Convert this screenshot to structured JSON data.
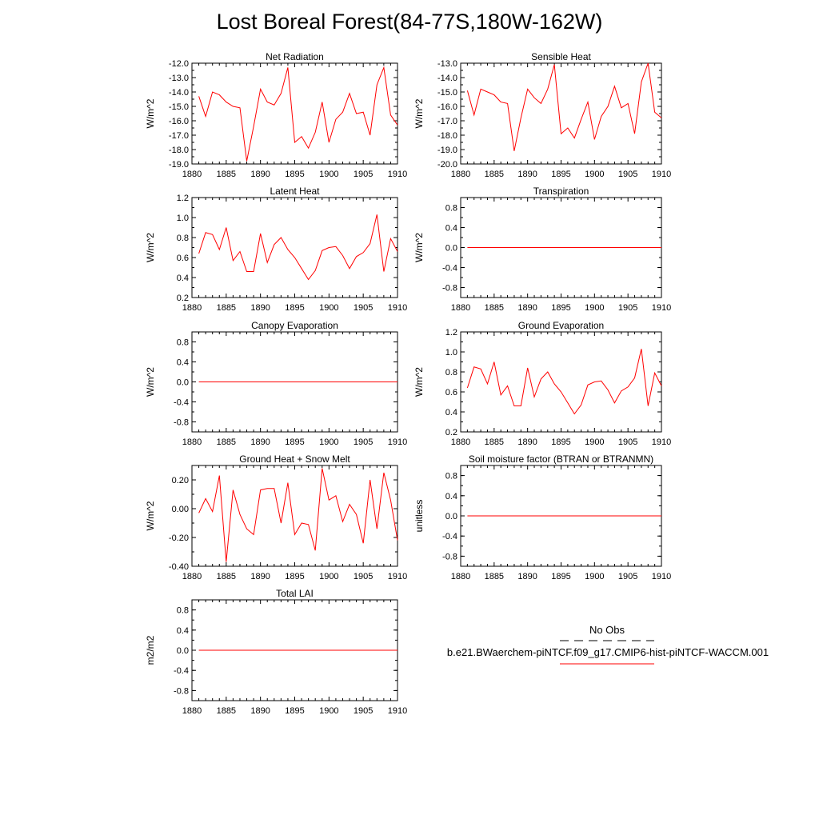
{
  "title": "Lost Boreal Forest(84-77S,180W-162W)",
  "legend": {
    "obs_label": "No Obs",
    "case_label": "b.e21.BWaerchem-piNTCF.f09_g17.CMIP6-hist-piNTCF-WACCM.001",
    "obs_color": "#000000",
    "case_color": "#ff0000"
  },
  "colors": {
    "line": "#ff0000",
    "axis": "#000000"
  },
  "chart_data": [
    {
      "type": "line",
      "title": "Net Radiation",
      "ylabel": "W/m^2",
      "xlim": [
        1880,
        1910
      ],
      "ylim": [
        -19.0,
        -12.0
      ],
      "xticks": [
        1880,
        1885,
        1890,
        1895,
        1900,
        1905,
        1910
      ],
      "yticks": [
        -19.0,
        -18.0,
        -17.0,
        -16.0,
        -15.0,
        -14.0,
        -13.0,
        -12.0
      ],
      "yticklabels": [
        "-19.0",
        "-18.0",
        "-17.0",
        "-16.0",
        "-15.0",
        "-14.0",
        "-13.0",
        "-12.0"
      ],
      "x": [
        1881,
        1882,
        1883,
        1884,
        1885,
        1886,
        1887,
        1888,
        1889,
        1890,
        1891,
        1892,
        1893,
        1894,
        1895,
        1896,
        1897,
        1898,
        1899,
        1900,
        1901,
        1902,
        1903,
        1904,
        1905,
        1906,
        1907,
        1908,
        1909,
        1910
      ],
      "values": [
        -14.3,
        -15.7,
        -14.0,
        -14.2,
        -14.7,
        -15.0,
        -15.1,
        -18.8,
        -16.4,
        -13.8,
        -14.7,
        -14.9,
        -14.1,
        -12.3,
        -17.5,
        -17.1,
        -17.9,
        -16.8,
        -14.7,
        -17.5,
        -15.9,
        -15.4,
        -14.1,
        -15.5,
        -15.4,
        -17.0,
        -13.5,
        -12.3,
        -15.6,
        -16.3
      ]
    },
    {
      "type": "line",
      "title": "Sensible Heat",
      "ylabel": "W/m^2",
      "xlim": [
        1880,
        1910
      ],
      "ylim": [
        -20.0,
        -13.0
      ],
      "xticks": [
        1880,
        1885,
        1890,
        1895,
        1900,
        1905,
        1910
      ],
      "yticks": [
        -20.0,
        -19.0,
        -18.0,
        -17.0,
        -16.0,
        -15.0,
        -14.0,
        -13.0
      ],
      "yticklabels": [
        "-20.0",
        "-19.0",
        "-18.0",
        "-17.0",
        "-16.0",
        "-15.0",
        "-14.0",
        "-13.0"
      ],
      "x": [
        1881,
        1882,
        1883,
        1884,
        1885,
        1886,
        1887,
        1888,
        1889,
        1890,
        1891,
        1892,
        1893,
        1894,
        1895,
        1896,
        1897,
        1898,
        1899,
        1900,
        1901,
        1902,
        1903,
        1904,
        1905,
        1906,
        1907,
        1908,
        1909,
        1910
      ],
      "values": [
        -14.9,
        -16.6,
        -14.8,
        -15.0,
        -15.2,
        -15.7,
        -15.8,
        -19.1,
        -16.8,
        -14.8,
        -15.4,
        -15.8,
        -14.8,
        -13.1,
        -17.9,
        -17.5,
        -18.2,
        -16.9,
        -15.7,
        -18.3,
        -16.7,
        -16.0,
        -14.6,
        -16.1,
        -15.8,
        -17.9,
        -14.3,
        -13.0,
        -16.4,
        -16.8
      ]
    },
    {
      "type": "line",
      "title": "Latent Heat",
      "ylabel": "W/m^2",
      "xlim": [
        1880,
        1910
      ],
      "ylim": [
        0.2,
        1.2
      ],
      "xticks": [
        1880,
        1885,
        1890,
        1895,
        1900,
        1905,
        1910
      ],
      "yticks": [
        0.2,
        0.4,
        0.6,
        0.8,
        1.0,
        1.2
      ],
      "yticklabels": [
        "0.2",
        "0.4",
        "0.6",
        "0.8",
        "1.0",
        "1.2"
      ],
      "x": [
        1881,
        1882,
        1883,
        1884,
        1885,
        1886,
        1887,
        1888,
        1889,
        1890,
        1891,
        1892,
        1893,
        1894,
        1895,
        1896,
        1897,
        1898,
        1899,
        1900,
        1901,
        1902,
        1903,
        1904,
        1905,
        1906,
        1907,
        1908,
        1909,
        1910
      ],
      "values": [
        0.64,
        0.85,
        0.83,
        0.68,
        0.9,
        0.57,
        0.66,
        0.46,
        0.46,
        0.84,
        0.55,
        0.73,
        0.8,
        0.68,
        0.6,
        0.49,
        0.38,
        0.47,
        0.67,
        0.7,
        0.71,
        0.62,
        0.49,
        0.61,
        0.65,
        0.74,
        1.03,
        0.46,
        0.79,
        0.66
      ]
    },
    {
      "type": "line",
      "title": "Transpiration",
      "ylabel": "W/m^2",
      "xlim": [
        1880,
        1910
      ],
      "ylim": [
        -1.0,
        1.0
      ],
      "xticks": [
        1880,
        1885,
        1890,
        1895,
        1900,
        1905,
        1910
      ],
      "yticks": [
        -0.8,
        -0.4,
        0.0,
        0.4,
        0.8
      ],
      "yticklabels": [
        "-0.8",
        "-0.4",
        "0.0",
        "0.4",
        "0.8"
      ],
      "x": [
        1881,
        1882,
        1883,
        1884,
        1885,
        1886,
        1887,
        1888,
        1889,
        1890,
        1891,
        1892,
        1893,
        1894,
        1895,
        1896,
        1897,
        1898,
        1899,
        1900,
        1901,
        1902,
        1903,
        1904,
        1905,
        1906,
        1907,
        1908,
        1909,
        1910
      ],
      "values": [
        0,
        0,
        0,
        0,
        0,
        0,
        0,
        0,
        0,
        0,
        0,
        0,
        0,
        0,
        0,
        0,
        0,
        0,
        0,
        0,
        0,
        0,
        0,
        0,
        0,
        0,
        0,
        0,
        0,
        0
      ]
    },
    {
      "type": "line",
      "title": "Canopy Evaporation",
      "ylabel": "W/m^2",
      "xlim": [
        1880,
        1910
      ],
      "ylim": [
        -1.0,
        1.0
      ],
      "xticks": [
        1880,
        1885,
        1890,
        1895,
        1900,
        1905,
        1910
      ],
      "yticks": [
        -0.8,
        -0.4,
        0.0,
        0.4,
        0.8
      ],
      "yticklabels": [
        "-0.8",
        "-0.4",
        "0.0",
        "0.4",
        "0.8"
      ],
      "x": [
        1881,
        1882,
        1883,
        1884,
        1885,
        1886,
        1887,
        1888,
        1889,
        1890,
        1891,
        1892,
        1893,
        1894,
        1895,
        1896,
        1897,
        1898,
        1899,
        1900,
        1901,
        1902,
        1903,
        1904,
        1905,
        1906,
        1907,
        1908,
        1909,
        1910
      ],
      "values": [
        0,
        0,
        0,
        0,
        0,
        0,
        0,
        0,
        0,
        0,
        0,
        0,
        0,
        0,
        0,
        0,
        0,
        0,
        0,
        0,
        0,
        0,
        0,
        0,
        0,
        0,
        0,
        0,
        0,
        0
      ]
    },
    {
      "type": "line",
      "title": "Ground Evaporation",
      "ylabel": "W/m^2",
      "xlim": [
        1880,
        1910
      ],
      "ylim": [
        0.2,
        1.2
      ],
      "xticks": [
        1880,
        1885,
        1890,
        1895,
        1900,
        1905,
        1910
      ],
      "yticks": [
        0.2,
        0.4,
        0.6,
        0.8,
        1.0,
        1.2
      ],
      "yticklabels": [
        "0.2",
        "0.4",
        "0.6",
        "0.8",
        "1.0",
        "1.2"
      ],
      "x": [
        1881,
        1882,
        1883,
        1884,
        1885,
        1886,
        1887,
        1888,
        1889,
        1890,
        1891,
        1892,
        1893,
        1894,
        1895,
        1896,
        1897,
        1898,
        1899,
        1900,
        1901,
        1902,
        1903,
        1904,
        1905,
        1906,
        1907,
        1908,
        1909,
        1910
      ],
      "values": [
        0.64,
        0.85,
        0.83,
        0.68,
        0.9,
        0.57,
        0.66,
        0.46,
        0.46,
        0.84,
        0.55,
        0.73,
        0.8,
        0.68,
        0.6,
        0.49,
        0.38,
        0.47,
        0.67,
        0.7,
        0.71,
        0.62,
        0.49,
        0.61,
        0.65,
        0.74,
        1.03,
        0.46,
        0.79,
        0.66
      ]
    },
    {
      "type": "line",
      "title": "Ground Heat + Snow Melt",
      "ylabel": "W/m^2",
      "xlim": [
        1880,
        1910
      ],
      "ylim": [
        -0.4,
        0.3
      ],
      "xticks": [
        1880,
        1885,
        1890,
        1895,
        1900,
        1905,
        1910
      ],
      "yticks": [
        -0.4,
        -0.2,
        0.0,
        0.2
      ],
      "yticklabels": [
        "-0.40",
        "-0.20",
        "0.00",
        "0.20"
      ],
      "x": [
        1881,
        1882,
        1883,
        1884,
        1885,
        1886,
        1887,
        1888,
        1889,
        1890,
        1891,
        1892,
        1893,
        1894,
        1895,
        1896,
        1897,
        1898,
        1899,
        1900,
        1901,
        1902,
        1903,
        1904,
        1905,
        1906,
        1907,
        1908,
        1909,
        1910
      ],
      "values": [
        -0.03,
        0.07,
        -0.02,
        0.23,
        -0.37,
        0.13,
        -0.04,
        -0.14,
        -0.18,
        0.13,
        0.14,
        0.14,
        -0.1,
        0.18,
        -0.18,
        -0.1,
        -0.11,
        -0.29,
        0.28,
        0.06,
        0.09,
        -0.09,
        0.03,
        -0.04,
        -0.24,
        0.2,
        -0.14,
        0.25,
        0.06,
        -0.22
      ]
    },
    {
      "type": "line",
      "title": "Soil moisture factor (BTRAN or BTRANMN)",
      "ylabel": "unitless",
      "xlim": [
        1880,
        1910
      ],
      "ylim": [
        -1.0,
        1.0
      ],
      "xticks": [
        1880,
        1885,
        1890,
        1895,
        1900,
        1905,
        1910
      ],
      "yticks": [
        -0.8,
        -0.4,
        0.0,
        0.4,
        0.8
      ],
      "yticklabels": [
        "-0.8",
        "-0.4",
        "0.0",
        "0.4",
        "0.8"
      ],
      "x": [
        1881,
        1882,
        1883,
        1884,
        1885,
        1886,
        1887,
        1888,
        1889,
        1890,
        1891,
        1892,
        1893,
        1894,
        1895,
        1896,
        1897,
        1898,
        1899,
        1900,
        1901,
        1902,
        1903,
        1904,
        1905,
        1906,
        1907,
        1908,
        1909,
        1910
      ],
      "values": [
        0,
        0,
        0,
        0,
        0,
        0,
        0,
        0,
        0,
        0,
        0,
        0,
        0,
        0,
        0,
        0,
        0,
        0,
        0,
        0,
        0,
        0,
        0,
        0,
        0,
        0,
        0,
        0,
        0,
        0
      ]
    },
    {
      "type": "line",
      "title": "Total LAI",
      "ylabel": "m2/m2",
      "xlim": [
        1880,
        1910
      ],
      "ylim": [
        -1.0,
        1.0
      ],
      "xticks": [
        1880,
        1885,
        1890,
        1895,
        1900,
        1905,
        1910
      ],
      "yticks": [
        -0.8,
        -0.4,
        0.0,
        0.4,
        0.8
      ],
      "yticklabels": [
        "-0.8",
        "-0.4",
        "0.0",
        "0.4",
        "0.8"
      ],
      "x": [
        1881,
        1882,
        1883,
        1884,
        1885,
        1886,
        1887,
        1888,
        1889,
        1890,
        1891,
        1892,
        1893,
        1894,
        1895,
        1896,
        1897,
        1898,
        1899,
        1900,
        1901,
        1902,
        1903,
        1904,
        1905,
        1906,
        1907,
        1908,
        1909,
        1910
      ],
      "values": [
        0,
        0,
        0,
        0,
        0,
        0,
        0,
        0,
        0,
        0,
        0,
        0,
        0,
        0,
        0,
        0,
        0,
        0,
        0,
        0,
        0,
        0,
        0,
        0,
        0,
        0,
        0,
        0,
        0,
        0
      ]
    }
  ]
}
